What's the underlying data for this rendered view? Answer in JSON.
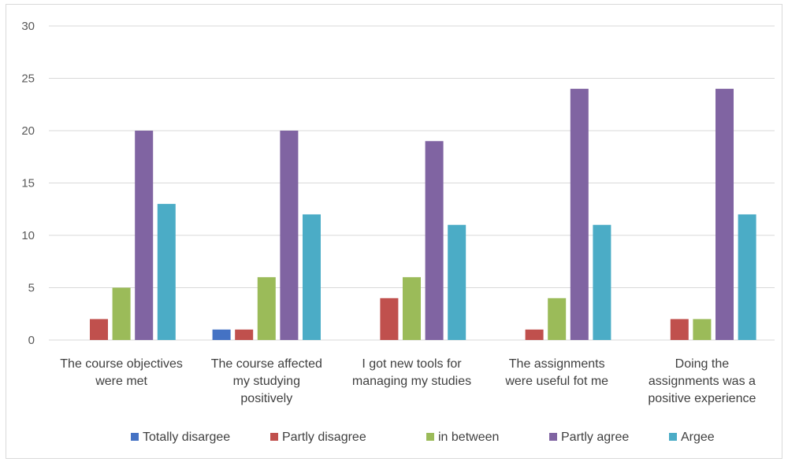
{
  "chart_data": {
    "type": "bar",
    "categories": [
      [
        "The course objectives",
        "were met"
      ],
      [
        "The course affected",
        "my studying",
        "positively"
      ],
      [
        "I got new tools for",
        "managing my studies"
      ],
      [
        "The assignments",
        "were useful fot me"
      ],
      [
        "Doing the",
        "assignments was a",
        "positive experience"
      ]
    ],
    "series": [
      {
        "name": "Totally disargee",
        "color": "#4472c4",
        "values": [
          0,
          1,
          0,
          0,
          0
        ]
      },
      {
        "name": "Partly disagree",
        "color": "#c0504d",
        "values": [
          2,
          1,
          4,
          1,
          2
        ]
      },
      {
        "name": "in between",
        "color": "#9bbb59",
        "values": [
          5,
          6,
          6,
          4,
          2
        ]
      },
      {
        "name": "Partly agree",
        "color": "#8064a2",
        "values": [
          20,
          20,
          19,
          24,
          24
        ]
      },
      {
        "name": "Argee",
        "color": "#4bacc6",
        "values": [
          13,
          12,
          11,
          11,
          12
        ]
      }
    ],
    "ylim": [
      0,
      30
    ],
    "yticks": [
      0,
      5,
      10,
      15,
      20,
      25,
      30
    ],
    "grid": true,
    "legend": "bottom"
  }
}
